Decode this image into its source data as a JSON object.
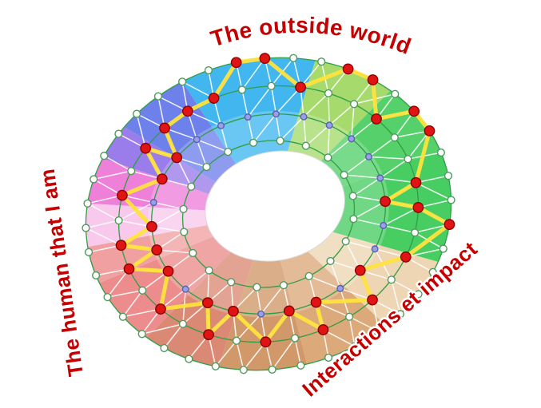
{
  "labels": {
    "top": "The outside world",
    "left": "The human that I am",
    "right": "Interactions et impact"
  },
  "label_color": "#c40000",
  "wheel": {
    "sectors": [
      {
        "start": 342,
        "end": 25,
        "color": "#41b6ef"
      },
      {
        "start": 25,
        "end": 52,
        "color": "#a6da6d"
      },
      {
        "start": 52,
        "end": 80,
        "color": "#55d06b"
      },
      {
        "start": 80,
        "end": 122,
        "color": "#48cd63"
      },
      {
        "start": 122,
        "end": 150,
        "color": "#eed6b4"
      },
      {
        "start": 150,
        "end": 178,
        "color": "#dcaa7a"
      },
      {
        "start": 178,
        "end": 206,
        "color": "#d1986a"
      },
      {
        "start": 206,
        "end": 232,
        "color": "#da8a74"
      },
      {
        "start": 232,
        "end": 258,
        "color": "#ec8c8c"
      },
      {
        "start": 258,
        "end": 272,
        "color": "#f0a0a0"
      },
      {
        "start": 272,
        "end": 288,
        "color": "#f8c9ec"
      },
      {
        "start": 288,
        "end": 305,
        "color": "#ee80da"
      },
      {
        "start": 305,
        "end": 318,
        "color": "#9a7ceb"
      },
      {
        "start": 318,
        "end": 342,
        "color": "#6e80ea"
      }
    ],
    "rings": [
      {
        "radius": 1.0,
        "count": 40,
        "node": "white"
      },
      {
        "radius": 0.82,
        "count": 32,
        "node": "white"
      },
      {
        "radius": 0.64,
        "count": 26,
        "node": "purple"
      },
      {
        "radius": 0.47,
        "count": 20,
        "node": "white"
      }
    ],
    "yellow_path": [
      "1:30",
      "1:31",
      "0:0",
      "0:1",
      "1:2",
      "0:4",
      "0:5",
      "1:5",
      "0:7",
      "0:8",
      "1:8",
      "2:7",
      "1:9",
      "0:12",
      "1:11",
      "2:10",
      "1:13",
      "2:12",
      "1:15",
      "2:13",
      "1:17",
      "2:15",
      "1:19",
      "2:16",
      "1:21",
      "2:18",
      "1:23",
      "2:19",
      "1:24",
      "2:20",
      "1:26",
      "2:22",
      "1:28",
      "2:23",
      "1:29"
    ],
    "node_styles": {
      "red": {
        "fill": "#e01414",
        "stroke": "#8f0000",
        "r": 6.2
      },
      "white": {
        "fill": "#ffffff",
        "stroke": "#4f9a5c",
        "r": 4.4
      },
      "purple": {
        "fill": "#98a0e8",
        "stroke": "#5a5fae",
        "r": 3.8
      }
    },
    "line_colors": {
      "ring": "#2f9e44",
      "mesh": "#ffffff",
      "path": "#ffe33d",
      "hole_edge": "#d9d9d9"
    }
  }
}
